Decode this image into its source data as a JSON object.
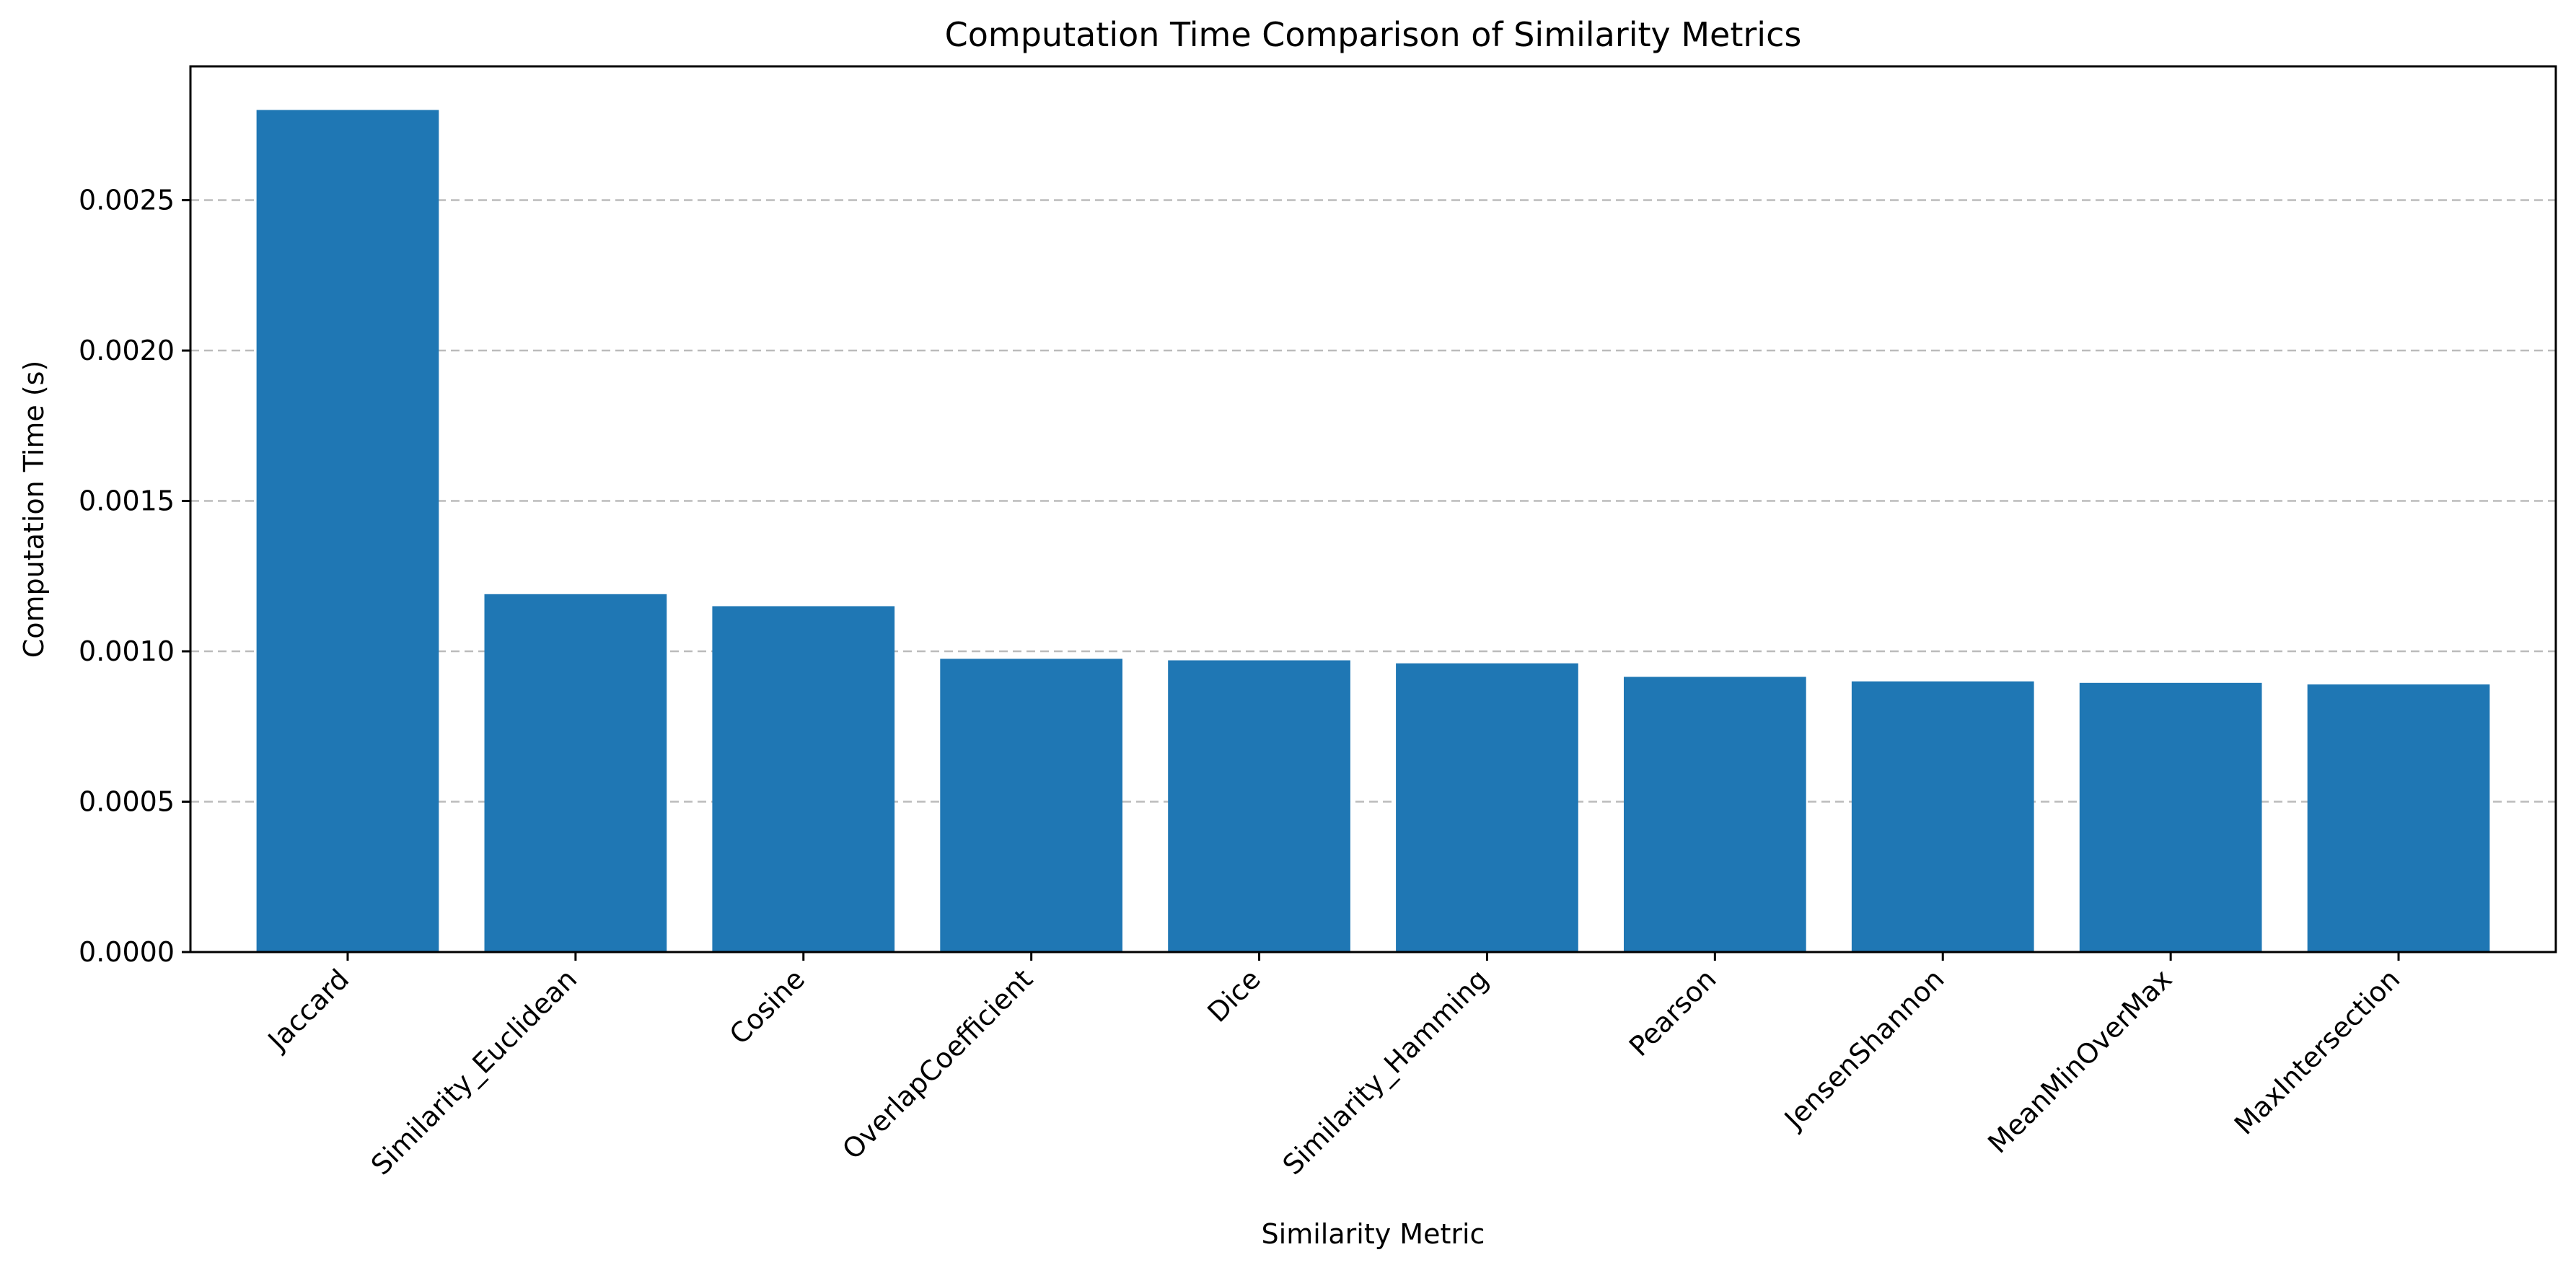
{
  "chart_data": {
    "type": "bar",
    "title": "Computation Time Comparison of Similarity Metrics",
    "xlabel": "Similarity Metric",
    "ylabel": "Computation Time (s)",
    "categories": [
      "Jaccard",
      "Similarity_Euclidean",
      "Cosine",
      "OverlapCoefficient",
      "Dice",
      "Similarity_Hamming",
      "Pearson",
      "JensenShannon",
      "MeanMinOverMax",
      "MaxIntersection"
    ],
    "values": [
      0.0028,
      0.00119,
      0.00115,
      0.000975,
      0.00097,
      0.00096,
      0.000915,
      0.0009,
      0.000895,
      0.00089
    ],
    "ylim": [
      0,
      0.002945
    ],
    "yticks": [
      0,
      0.0005,
      0.001,
      0.0015,
      0.002,
      0.0025
    ],
    "ytick_labels": [
      "0.0000",
      "0.0005",
      "0.0010",
      "0.0015",
      "0.0020",
      "0.0025"
    ],
    "grid": "y-dashed",
    "bar_color": "#1f77b4"
  }
}
